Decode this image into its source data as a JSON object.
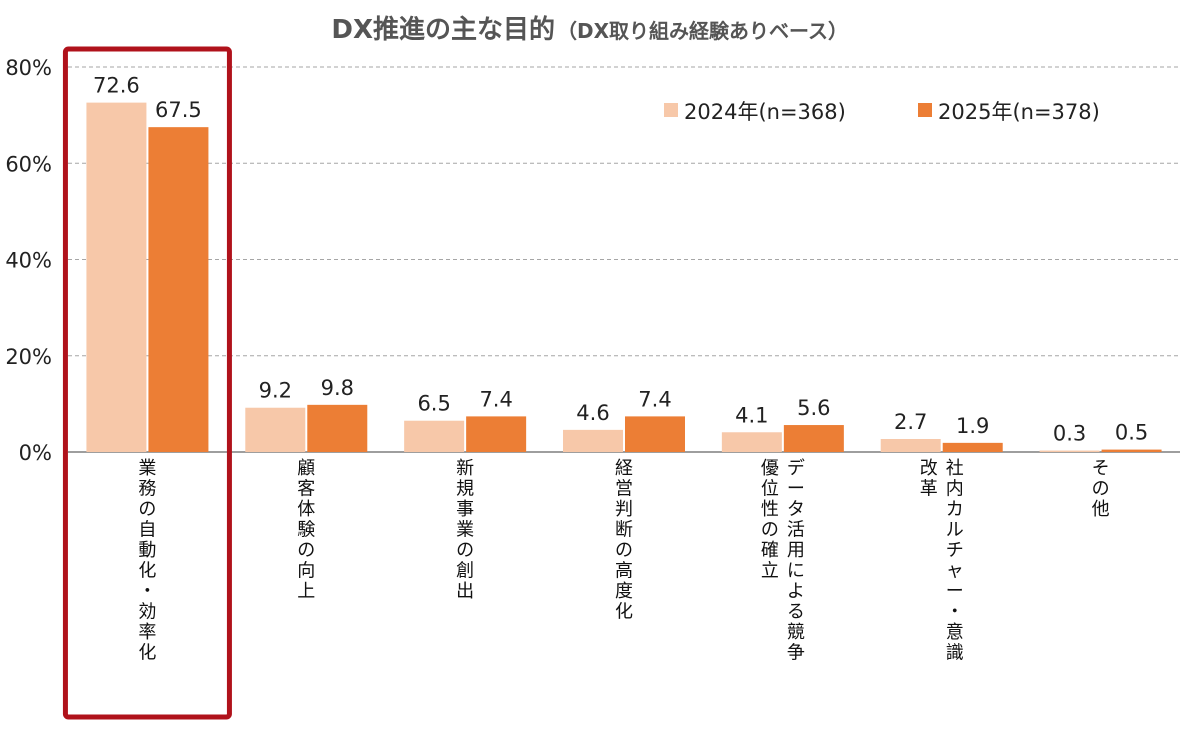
{
  "chart_data": {
    "type": "bar",
    "title": "DX推進の主な目的",
    "subtitle": "（DX取り組み経験ありベース）",
    "yticks": [
      "0%",
      "20%",
      "40%",
      "60%",
      "80%"
    ],
    "ylim": [
      0,
      80
    ],
    "grid": true,
    "legend_position": "top-right",
    "categories": [
      "業務の自動化・効率化",
      "顧客体験の向上",
      "新規事業の創出",
      "経営判断の高度化",
      "データ活用による競争優位性の確立",
      "社内カルチャー・意識改革",
      "その他"
    ],
    "category_lines": [
      [
        "業務の自動化・効率化"
      ],
      [
        "顧客体験の向上"
      ],
      [
        "新規事業の創出"
      ],
      [
        "経営判断の高度化"
      ],
      [
        "データ活用による競争",
        "優位性の確立"
      ],
      [
        "社内カルチャー・意識",
        "改革"
      ],
      [
        "その他"
      ]
    ],
    "series": [
      {
        "name": "2024年(n=368)",
        "color": "#F7C8A9",
        "values": [
          72.6,
          9.2,
          6.5,
          4.6,
          4.1,
          2.7,
          0.3
        ],
        "labels": [
          "72.6",
          "9.2",
          "6.5",
          "4.6",
          "4.1",
          "2.7",
          "0.3"
        ]
      },
      {
        "name": "2025年(n=378)",
        "color": "#EC7E35",
        "values": [
          67.5,
          9.8,
          7.4,
          7.4,
          5.6,
          1.9,
          0.5
        ],
        "labels": [
          "67.5",
          "9.8",
          "7.4",
          "7.4",
          "5.6",
          "1.9",
          "0.5"
        ]
      }
    ],
    "highlight": {
      "category_index": 0,
      "color": "#B0121B"
    }
  }
}
